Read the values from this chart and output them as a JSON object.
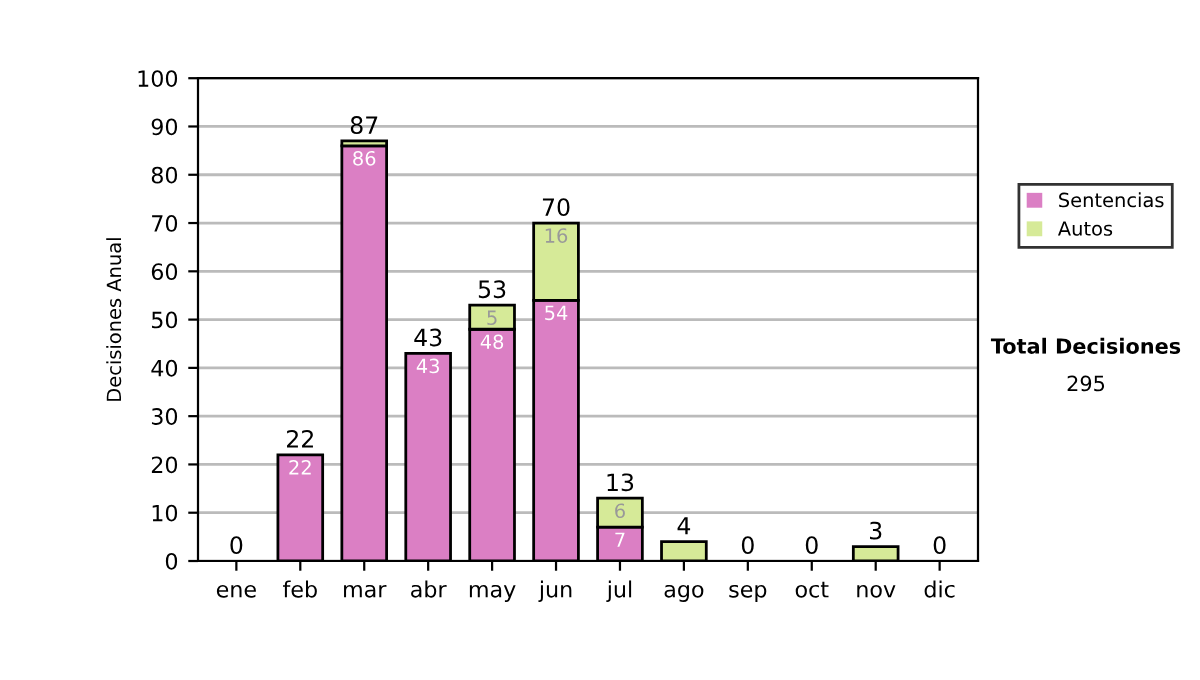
{
  "chart_data": {
    "type": "bar",
    "ylabel": "Decisiones Anual",
    "categories": [
      "ene",
      "feb",
      "mar",
      "abr",
      "may",
      "jun",
      "jul",
      "ago",
      "sep",
      "oct",
      "nov",
      "dic"
    ],
    "stacked": true,
    "series": [
      {
        "name": "Sentencias",
        "color": "#db7fc4",
        "values": [
          0,
          22,
          86,
          43,
          48,
          54,
          7,
          0,
          0,
          0,
          0,
          0
        ],
        "value_labels": [
          null,
          "22",
          "86",
          "43",
          "48",
          "54",
          "7",
          null,
          null,
          null,
          null,
          null
        ]
      },
      {
        "name": "Autos",
        "color": "#d6ea98",
        "values": [
          0,
          0,
          1,
          0,
          5,
          16,
          6,
          4,
          0,
          0,
          3,
          0
        ],
        "value_labels": [
          null,
          null,
          null,
          null,
          "5",
          "16",
          "6",
          null,
          null,
          null,
          null,
          null
        ]
      }
    ],
    "totals": [
      "0",
      "22",
      "87",
      "43",
      "53",
      "70",
      "13",
      "4",
      "0",
      "0",
      "3",
      "0"
    ],
    "ylim": [
      0,
      100
    ],
    "yticks": [
      0,
      10,
      20,
      30,
      40,
      50,
      60,
      70,
      80,
      90,
      100
    ],
    "grid": "y",
    "legend": "right",
    "annotations": [
      "Total Decisiones",
      "295"
    ]
  }
}
